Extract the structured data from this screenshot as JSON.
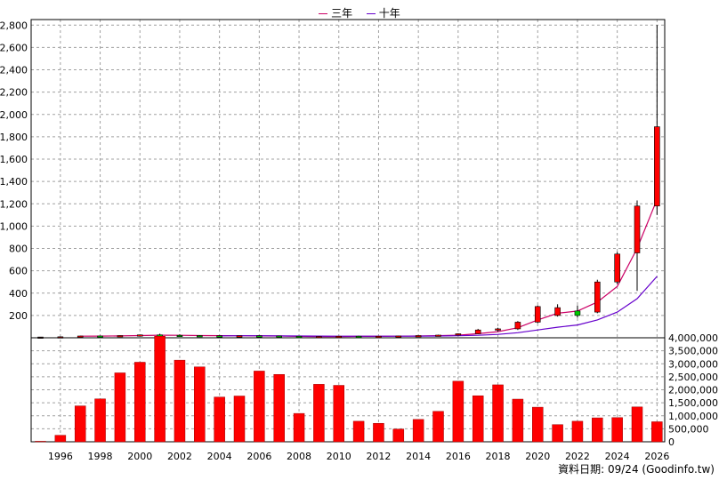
{
  "legend": {
    "items": [
      {
        "label": "三年",
        "color": "#cc0066"
      },
      {
        "label": "十年",
        "color": "#6600cc"
      }
    ]
  },
  "footer": {
    "source": "資料日期: 09/24  (Goodinfo.tw)"
  },
  "chart_data": [
    {
      "type": "candlestick",
      "years": [
        1995,
        1996,
        1997,
        1998,
        1999,
        2000,
        2001,
        2002,
        2003,
        2004,
        2005,
        2006,
        2007,
        2008,
        2009,
        2010,
        2011,
        2012,
        2013,
        2014,
        2015,
        2016,
        2017,
        2018,
        2019,
        2020,
        2021,
        2022,
        2023,
        2024,
        2025,
        2026
      ],
      "ohlc": [
        [
          6,
          8,
          5,
          7
        ],
        [
          6,
          10,
          5,
          9
        ],
        [
          10,
          18,
          8,
          16
        ],
        [
          16,
          20,
          12,
          14
        ],
        [
          14,
          22,
          12,
          20
        ],
        [
          20,
          28,
          16,
          26
        ],
        [
          26,
          36,
          20,
          22
        ],
        [
          22,
          30,
          16,
          20
        ],
        [
          20,
          24,
          16,
          18
        ],
        [
          18,
          22,
          14,
          16
        ],
        [
          16,
          20,
          14,
          18
        ],
        [
          18,
          22,
          14,
          16
        ],
        [
          16,
          18,
          12,
          14
        ],
        [
          14,
          16,
          6,
          8
        ],
        [
          8,
          14,
          6,
          12
        ],
        [
          12,
          16,
          10,
          14
        ],
        [
          14,
          18,
          10,
          12
        ],
        [
          12,
          16,
          10,
          14
        ],
        [
          14,
          18,
          12,
          16
        ],
        [
          16,
          22,
          14,
          20
        ],
        [
          20,
          28,
          16,
          24
        ],
        [
          24,
          40,
          20,
          36
        ],
        [
          36,
          80,
          34,
          70
        ],
        [
          70,
          90,
          55,
          80
        ],
        [
          80,
          150,
          70,
          140
        ],
        [
          140,
          290,
          130,
          280
        ],
        [
          200,
          300,
          190,
          270
        ],
        [
          240,
          290,
          180,
          200
        ],
        [
          230,
          520,
          220,
          500
        ],
        [
          500,
          770,
          480,
          750
        ],
        [
          760,
          1230,
          420,
          1180
        ],
        [
          1180,
          2800,
          1100,
          1890
        ]
      ],
      "series": [
        {
          "name": "三年",
          "color": "#cc0066",
          "x": [
            1997,
            1998,
            1999,
            2000,
            2001,
            2002,
            2003,
            2004,
            2005,
            2006,
            2007,
            2008,
            2009,
            2010,
            2011,
            2012,
            2013,
            2014,
            2015,
            2016,
            2017,
            2018,
            2019,
            2020,
            2021,
            2022,
            2023,
            2024,
            2025,
            2026
          ],
          "values": [
            14,
            15,
            17,
            20,
            23,
            22,
            20,
            19,
            18,
            17,
            16,
            13,
            11,
            11,
            13,
            13,
            14,
            16,
            19,
            23,
            37,
            55,
            90,
            160,
            220,
            240,
            320,
            460,
            800,
            1240
          ]
        },
        {
          "name": "十年",
          "color": "#6600cc",
          "x": [
            2004,
            2005,
            2006,
            2007,
            2008,
            2009,
            2010,
            2011,
            2012,
            2013,
            2014,
            2015,
            2016,
            2017,
            2018,
            2019,
            2020,
            2021,
            2022,
            2023,
            2024,
            2025,
            2026
          ],
          "values": [
            17,
            18,
            18,
            17,
            16,
            15,
            14,
            14,
            14,
            14,
            15,
            16,
            18,
            22,
            30,
            45,
            70,
            95,
            115,
            160,
            230,
            350,
            550
          ]
        }
      ],
      "ylim": [
        0,
        2850
      ],
      "yticks": [
        200,
        400,
        600,
        800,
        1000,
        1200,
        1400,
        1600,
        1800,
        2000,
        2200,
        2400,
        2600,
        2800
      ],
      "ytick_labels": [
        "200",
        "400",
        "600",
        "800",
        "1,000",
        "1,200",
        "1,400",
        "1,600",
        "1,800",
        "2,000",
        "2,200",
        "2,400",
        "2,600",
        "2,800"
      ],
      "grid": true
    },
    {
      "type": "bar",
      "years": [
        1995,
        1996,
        1997,
        1998,
        1999,
        2000,
        2001,
        2002,
        2003,
        2004,
        2005,
        2006,
        2007,
        2008,
        2009,
        2010,
        2011,
        2012,
        2013,
        2014,
        2015,
        2016,
        2017,
        2018,
        2019,
        2020,
        2021,
        2022,
        2023,
        2024,
        2025,
        2026
      ],
      "values": [
        20000,
        250000,
        1380000,
        1650000,
        2650000,
        3060000,
        4060000,
        3140000,
        2880000,
        1720000,
        1760000,
        2720000,
        2590000,
        1090000,
        2210000,
        2170000,
        790000,
        710000,
        490000,
        860000,
        1170000,
        2330000,
        1770000,
        2190000,
        1640000,
        1330000,
        660000,
        790000,
        920000,
        930000,
        1340000,
        770000
      ],
      "color": "#ff0000",
      "ylim": [
        0,
        4000000
      ],
      "yticks": [
        0,
        500000,
        1000000,
        1500000,
        2000000,
        2500000,
        3000000,
        3500000,
        4000000
      ],
      "ytick_labels": [
        "0",
        "500,000",
        "1,000,000",
        "1,500,000",
        "2,000,000",
        "2,500,000",
        "3,000,000",
        "3,500,000",
        "4,000,000"
      ],
      "xticks": [
        1996,
        1998,
        2000,
        2002,
        2004,
        2006,
        2008,
        2010,
        2012,
        2014,
        2016,
        2018,
        2020,
        2022,
        2024,
        2026
      ],
      "xtick_labels": [
        "1996",
        "1998",
        "2000",
        "2002",
        "2004",
        "2006",
        "2008",
        "2010",
        "2012",
        "2014",
        "2016",
        "2018",
        "2020",
        "2022",
        "2024",
        "2026"
      ],
      "grid": true
    }
  ]
}
